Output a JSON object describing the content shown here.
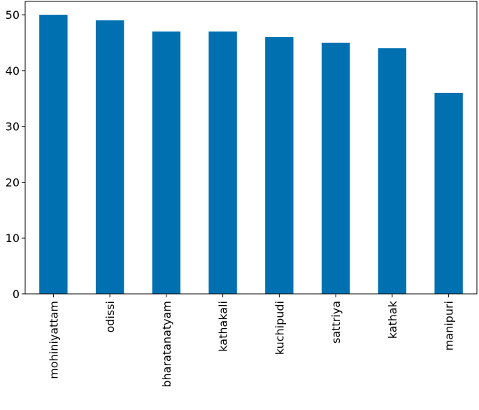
{
  "chart_data": {
    "type": "bar",
    "categories": [
      "mohiniyattam",
      "odissi",
      "bharatanatyam",
      "kathakali",
      "kuchipudi",
      "sattriya",
      "kathak",
      "manipuri"
    ],
    "values": [
      50,
      49,
      47,
      47,
      46,
      45,
      44,
      36
    ],
    "color": "#0070b0",
    "ylim": [
      0,
      52.4
    ],
    "yticks": [
      0,
      10,
      20,
      30,
      40,
      50
    ],
    "grid": false
  }
}
